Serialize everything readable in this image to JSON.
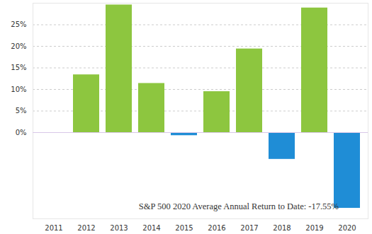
{
  "chart_data": {
    "type": "bar",
    "categories": [
      "2011",
      "2012",
      "2013",
      "2014",
      "2015",
      "2016",
      "2017",
      "2018",
      "2019",
      "2020"
    ],
    "values": [
      0.0,
      13.4,
      29.6,
      11.4,
      -0.7,
      9.5,
      19.4,
      -6.2,
      28.9,
      -17.55
    ],
    "colors": [
      "#8dc63f",
      "#8dc63f",
      "#8dc63f",
      "#8dc63f",
      "#1f8dd6",
      "#8dc63f",
      "#8dc63f",
      "#1f8dd6",
      "#8dc63f",
      "#1f8dd6"
    ],
    "ylim": [
      -20,
      30
    ],
    "yticks": [
      {
        "value": 0,
        "label": "0%"
      },
      {
        "value": 5,
        "label": "5%"
      },
      {
        "value": 10,
        "label": "10%"
      },
      {
        "value": 15,
        "label": "15%"
      },
      {
        "value": 20,
        "label": "20%"
      },
      {
        "value": 25,
        "label": "25%"
      }
    ],
    "annotation": "S&P 500 2020 Average Annual Return to Date: -17.55%",
    "grid": true
  }
}
